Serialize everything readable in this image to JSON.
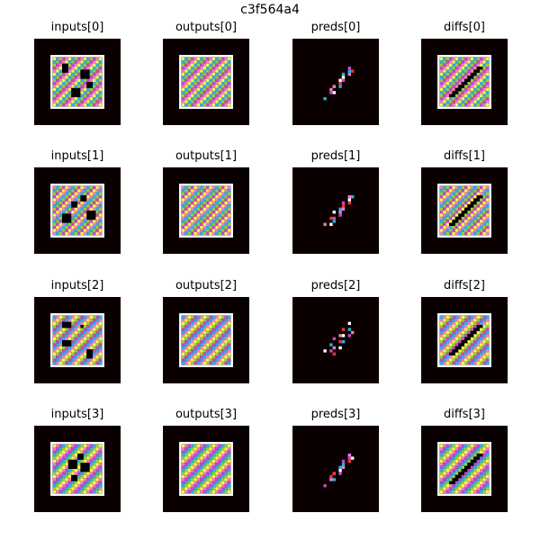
{
  "figure": {
    "title": "c3f564a4"
  },
  "columns": [
    "inputs",
    "outputs",
    "preds",
    "diffs"
  ],
  "rows": [
    {
      "labels": [
        "inputs[0]",
        "outputs[0]",
        "preds[0]",
        "diffs[0]"
      ]
    },
    {
      "labels": [
        "inputs[1]",
        "outputs[1]",
        "preds[1]",
        "diffs[1]"
      ]
    },
    {
      "labels": [
        "inputs[2]",
        "outputs[2]",
        "preds[2]",
        "diffs[2]"
      ]
    },
    {
      "labels": [
        "inputs[3]",
        "outputs[3]",
        "preds[3]",
        "diffs[3]"
      ]
    }
  ],
  "palettes": [
    [
      "#fef54a",
      "#25b2e6",
      "#9bcb3c",
      "#c347c7",
      "#ee7ec2"
    ],
    [
      "#ee7ec2",
      "#25b2e6",
      "#9bcb3c",
      "#c347c7",
      "#fef54a"
    ],
    [
      "#25b2e6",
      "#ee7ec2",
      "#fef54a",
      "#9bcb3c",
      "#c347c7"
    ],
    [
      "#fef54a",
      "#ee7ec2",
      "#c347c7",
      "#25b2e6",
      "#9bcb3c"
    ]
  ],
  "colors": {
    "background": "#0b0000",
    "border": "#ffffff",
    "black": "#000000"
  }
}
